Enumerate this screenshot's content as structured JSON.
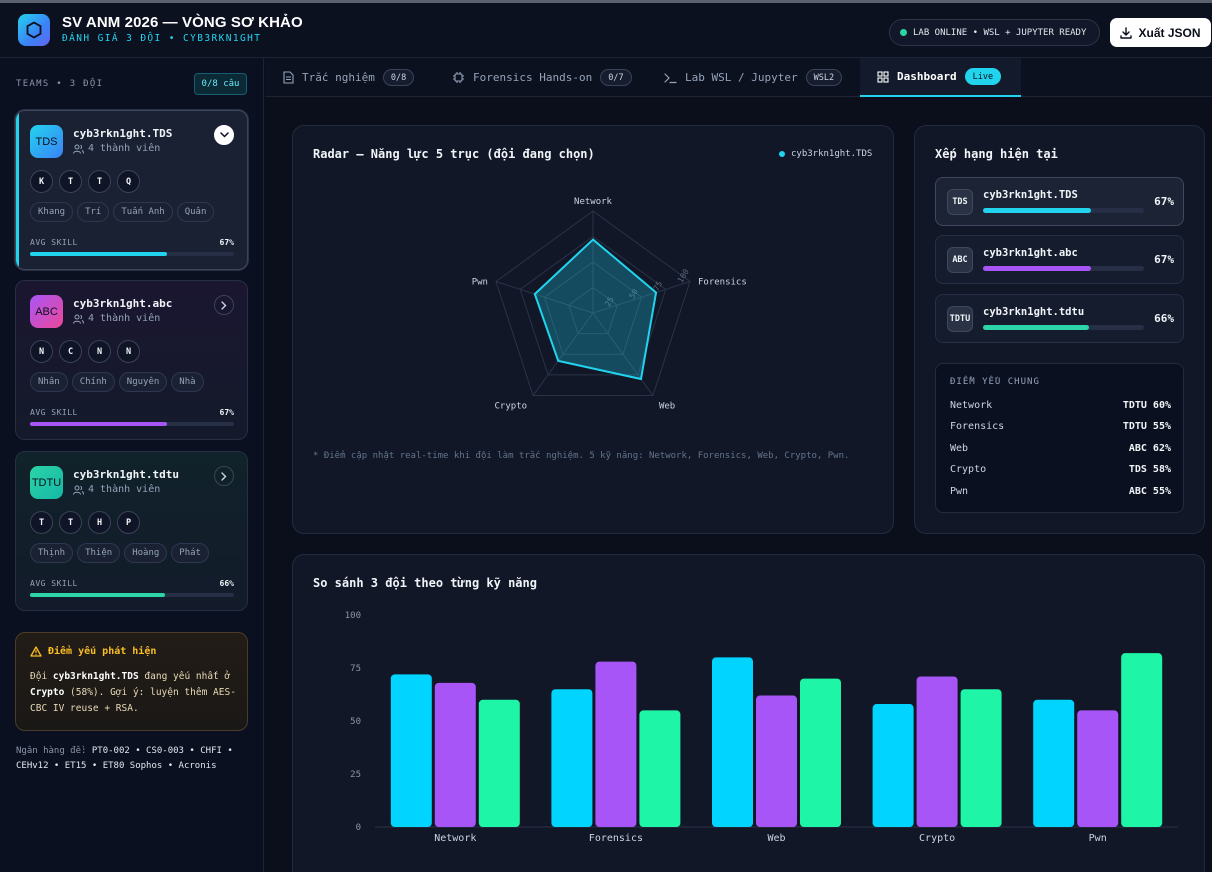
{
  "app": {
    "title": "SV ANM 2026 — VÒNG SƠ KHẢO",
    "subtitle": "ĐÁNH GIÁ 3 ĐỘI • CYB3RKN1GHT",
    "status": "LAB ONLINE • WSL + JUPYTER READY",
    "export_label": "Xuất JSON"
  },
  "sidebar": {
    "teams_label": "TEAMS • 3 ĐỘI",
    "count_badge": "0/8 câu",
    "skill_label": "AVG SKILL",
    "teams": [
      {
        "abbr": "TDS",
        "name": "cyb3rkn1ght.TDS",
        "members": "4 thành viên",
        "initials": [
          "K",
          "T",
          "T",
          "Q"
        ],
        "member_names": [
          "Khang",
          "Trí",
          "Tuấn Anh",
          "Quân"
        ],
        "avg_skill": "67%",
        "avg_skill_value": 0.67,
        "color": "#22d3ee",
        "gradient": [
          "#22d3ee",
          "#3b82f6"
        ],
        "expanded": true
      },
      {
        "abbr": "ABC",
        "name": "cyb3rkn1ght.abc",
        "members": "4 thành viên",
        "initials": [
          "N",
          "C",
          "N",
          "N"
        ],
        "member_names": [
          "Nhân",
          "Chính",
          "Nguyên",
          "Nhà"
        ],
        "avg_skill": "67%",
        "avg_skill_value": 0.67,
        "color": "#a855f7",
        "gradient": [
          "#a855f7",
          "#ec4899"
        ],
        "expanded": false
      },
      {
        "abbr": "TDTU",
        "name": "cyb3rkn1ght.tdtu",
        "members": "4 thành viên",
        "initials": [
          "T",
          "T",
          "H",
          "P"
        ],
        "member_names": [
          "Thịnh",
          "Thiện",
          "Hoàng",
          "Phát"
        ],
        "avg_skill": "66%",
        "avg_skill_value": 0.66,
        "color": "#2dd4a7",
        "gradient": [
          "#2dd4a7",
          "#14b8a6"
        ],
        "expanded": false
      }
    ],
    "warning": {
      "title": "Điểm yếu phát hiện",
      "prefix": "Đội ",
      "team": "cyb3rkn1ght.TDS",
      "middle": " đang yếu nhất ở ",
      "skill": "Crypto",
      "suffix": " (58%). Gợi ý: luyện thêm AES-CBC IV reuse + RSA."
    },
    "bank": {
      "label": "Ngân hàng đề: ",
      "value": "PT0-002 • CS0-003 • CHFI • CEHv12 • ET15 • ET80 Sophos • Acronis"
    }
  },
  "tabs": [
    {
      "label": "Trắc nghiệm",
      "count": "0/8",
      "icon": "quiz-icon",
      "active": false
    },
    {
      "label": "Forensics Hands-on",
      "count": "0/7",
      "icon": "chip-icon",
      "active": false
    },
    {
      "label": "Lab WSL / Jupyter",
      "count": "WSL2",
      "icon": "terminal-icon",
      "active": false
    },
    {
      "label": "Dashboard",
      "count": "Live",
      "icon": "dashboard-icon",
      "active": true
    }
  ],
  "radar": {
    "title": "Radar — Năng lực 5 trục (đội đang chọn)",
    "legend": "cyb3rkn1ght.TDS",
    "axes": [
      "Network",
      "Forensics",
      "Web",
      "Crypto",
      "Pwn"
    ],
    "values": [
      72,
      65,
      80,
      58,
      60
    ],
    "ticks": [
      "25",
      "50",
      "75",
      "100"
    ],
    "note": "* Điểm cập nhật real-time khi đội làm trắc nghiệm. 5 kỹ năng: Network, Forensics, Web, Crypto, Pwn.",
    "color": "#22d3ee"
  },
  "ranking": {
    "title": "Xếp hạng hiện tại",
    "rows": [
      {
        "abbr": "TDS",
        "name": "cyb3rkn1ght.TDS",
        "pct": "67%",
        "value": 0.67,
        "color": "#22d3ee"
      },
      {
        "abbr": "ABC",
        "name": "cyb3rkn1ght.abc",
        "pct": "67%",
        "value": 0.67,
        "color": "#a855f7"
      },
      {
        "abbr": "TDTU",
        "name": "cyb3rkn1ght.tdtu",
        "pct": "66%",
        "value": 0.66,
        "color": "#2dd4a7"
      }
    ],
    "weak_title": "ĐIỂM YẾU CHUNG",
    "weak": [
      {
        "skill": "Network",
        "value": "TDTU 60%"
      },
      {
        "skill": "Forensics",
        "value": "TDTU 55%"
      },
      {
        "skill": "Web",
        "value": "ABC 62%"
      },
      {
        "skill": "Crypto",
        "value": "TDS 58%"
      },
      {
        "skill": "Pwn",
        "value": "ABC 55%"
      }
    ]
  },
  "compare": {
    "title": "So sánh 3 đội theo từng kỹ năng"
  },
  "chart_data": {
    "type": "bar",
    "title": "So sánh 3 đội theo từng kỹ năng",
    "categories": [
      "Network",
      "Forensics",
      "Web",
      "Crypto",
      "Pwn"
    ],
    "series": [
      {
        "name": "cyb3rkn1ght.TDS",
        "values": [
          72,
          65,
          80,
          58,
          60
        ],
        "color": "#00d4ff"
      },
      {
        "name": "cyb3rkn1ght.abc",
        "values": [
          68,
          78,
          62,
          71,
          55
        ],
        "color": "#a855f7"
      },
      {
        "name": "cyb3rkn1ght.tdtu",
        "values": [
          60,
          55,
          70,
          65,
          82
        ],
        "color": "#1ff5a6"
      }
    ],
    "ylim": [
      0,
      100
    ],
    "yticks": [
      "0",
      "25",
      "50",
      "75",
      "100"
    ],
    "grid": false,
    "xlabel": "",
    "ylabel": ""
  }
}
